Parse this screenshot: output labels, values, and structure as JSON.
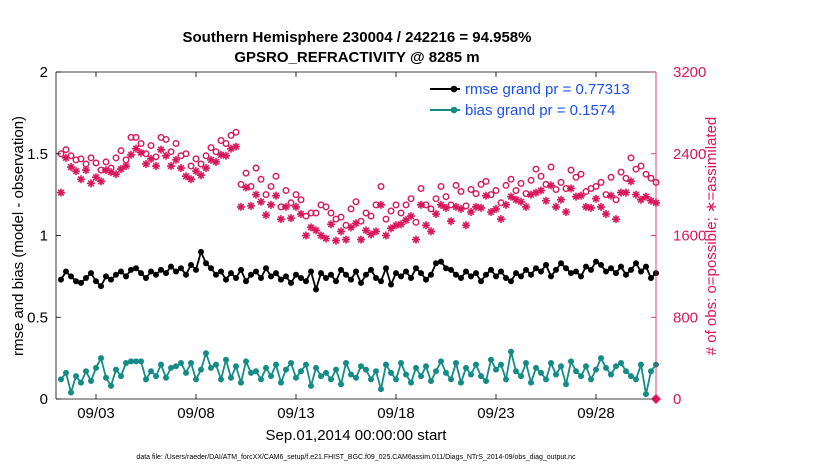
{
  "chart_data": {
    "type": "line",
    "title": "Southern Hemisphere 230004 / 242216 = 94.958%",
    "subtitle": "GPSRO_REFRACTIVITY @ 8285 m",
    "xlabel": "Sep.01,2014 00:00:00 start",
    "ylabel_left": "rmse and bias (model - observation)",
    "ylabel_right": "# of obs: o=possible; ∗=assimilated",
    "footer": "data file: /Users/raeder/DAI/ATM_forcXX/CAM6_setup/f.e21.FHIST_BGC.f09_025.CAM6assim.011/Diags_NTrS_2014-09/obs_diag_output.nc",
    "ylim_left": [
      0,
      2
    ],
    "ylim_right": [
      0,
      3200
    ],
    "xlim": [
      1,
      31
    ],
    "x_ticks": [
      3,
      8,
      13,
      18,
      23,
      28
    ],
    "x_tick_labels": [
      "09/03",
      "09/08",
      "09/13",
      "09/18",
      "09/23",
      "09/28"
    ],
    "y_ticks_left": [
      "0",
      "0.5",
      "1",
      "1.5",
      "2"
    ],
    "y_ticks_right": [
      "0",
      "800",
      "1600",
      "2400",
      "3200"
    ],
    "legend_location": "top-right",
    "colors": {
      "rmse": "#000000",
      "bias": "#138c87",
      "obs": "#d8185a",
      "legend_text": "#1a4ff0"
    },
    "x": [
      1.25,
      1.5,
      1.75,
      2.0,
      2.25,
      2.5,
      2.75,
      3.0,
      3.25,
      3.5,
      3.75,
      4.0,
      4.25,
      4.5,
      4.75,
      5.0,
      5.25,
      5.5,
      5.75,
      6.0,
      6.25,
      6.5,
      6.75,
      7.0,
      7.25,
      7.5,
      7.75,
      8.0,
      8.25,
      8.5,
      8.75,
      9.0,
      9.25,
      9.5,
      9.75,
      10.0,
      10.25,
      10.5,
      10.75,
      11.0,
      11.25,
      11.5,
      11.75,
      12.0,
      12.25,
      12.5,
      12.75,
      13.0,
      13.25,
      13.5,
      13.75,
      14.0,
      14.25,
      14.5,
      14.75,
      15.0,
      15.25,
      15.5,
      15.75,
      16.0,
      16.25,
      16.5,
      16.75,
      17.0,
      17.25,
      17.5,
      17.75,
      18.0,
      18.25,
      18.5,
      18.75,
      19.0,
      19.25,
      19.5,
      19.75,
      20.0,
      20.25,
      20.5,
      20.75,
      21.0,
      21.25,
      21.5,
      21.75,
      22.0,
      22.25,
      22.5,
      22.75,
      23.0,
      23.25,
      23.5,
      23.75,
      24.0,
      24.25,
      24.5,
      24.75,
      25.0,
      25.25,
      25.5,
      25.75,
      26.0,
      26.25,
      26.5,
      26.75,
      27.0,
      27.25,
      27.5,
      27.75,
      28.0,
      28.25,
      28.5,
      28.75,
      29.0,
      29.25,
      29.5,
      29.75,
      30.0,
      30.25,
      30.5,
      30.75,
      31.0
    ],
    "series": [
      {
        "name": "rmse grand pr = 0.77313",
        "marker": "filled-circle",
        "axis": "left",
        "values": [
          0.73,
          0.78,
          0.75,
          0.72,
          0.71,
          0.74,
          0.77,
          0.72,
          0.69,
          0.75,
          0.73,
          0.76,
          0.78,
          0.75,
          0.79,
          0.8,
          0.77,
          0.74,
          0.78,
          0.76,
          0.79,
          0.77,
          0.81,
          0.78,
          0.8,
          0.76,
          0.82,
          0.79,
          0.9,
          0.83,
          0.8,
          0.76,
          0.78,
          0.73,
          0.77,
          0.74,
          0.79,
          0.72,
          0.76,
          0.78,
          0.74,
          0.8,
          0.75,
          0.77,
          0.73,
          0.75,
          0.71,
          0.76,
          0.74,
          0.72,
          0.78,
          0.67,
          0.77,
          0.74,
          0.76,
          0.72,
          0.79,
          0.76,
          0.73,
          0.78,
          0.71,
          0.76,
          0.79,
          0.74,
          0.72,
          0.8,
          0.7,
          0.77,
          0.75,
          0.78,
          0.74,
          0.8,
          0.77,
          0.73,
          0.76,
          0.83,
          0.84,
          0.8,
          0.79,
          0.76,
          0.74,
          0.78,
          0.75,
          0.77,
          0.72,
          0.76,
          0.79,
          0.75,
          0.78,
          0.74,
          0.72,
          0.77,
          0.75,
          0.79,
          0.76,
          0.8,
          0.78,
          0.82,
          0.75,
          0.79,
          0.83,
          0.8,
          0.77,
          0.78,
          0.75,
          0.81,
          0.79,
          0.84,
          0.82,
          0.78,
          0.8,
          0.77,
          0.81,
          0.76,
          0.79,
          0.83,
          0.78,
          0.81,
          0.74,
          0.77
        ]
      },
      {
        "name": "bias grand pr = 0.1574",
        "marker": "filled-circle",
        "axis": "left",
        "values": [
          0.12,
          0.16,
          0.04,
          0.14,
          0.1,
          0.17,
          0.11,
          0.19,
          0.25,
          0.13,
          0.08,
          0.18,
          0.14,
          0.22,
          0.23,
          0.23,
          0.23,
          0.12,
          0.17,
          0.14,
          0.21,
          0.13,
          0.19,
          0.2,
          0.22,
          0.16,
          0.22,
          0.12,
          0.18,
          0.28,
          0.19,
          0.21,
          0.12,
          0.24,
          0.13,
          0.2,
          0.1,
          0.23,
          0.16,
          0.17,
          0.12,
          0.19,
          0.14,
          0.21,
          0.1,
          0.18,
          0.22,
          0.13,
          0.17,
          0.21,
          0.08,
          0.19,
          0.14,
          0.16,
          0.12,
          0.18,
          0.09,
          0.22,
          0.15,
          0.13,
          0.2,
          0.18,
          0.12,
          0.17,
          0.06,
          0.21,
          0.16,
          0.12,
          0.22,
          0.15,
          0.1,
          0.19,
          0.14,
          0.2,
          0.11,
          0.17,
          0.23,
          0.16,
          0.12,
          0.22,
          0.1,
          0.19,
          0.15,
          0.21,
          0.14,
          0.11,
          0.24,
          0.18,
          0.21,
          0.12,
          0.29,
          0.17,
          0.14,
          0.22,
          0.1,
          0.19,
          0.16,
          0.12,
          0.22,
          0.15,
          0.2,
          0.09,
          0.23,
          0.17,
          0.14,
          0.2,
          0.12,
          0.18,
          0.25,
          0.19,
          0.15,
          0.2,
          0.22,
          0.17,
          0.14,
          0.12,
          0.21,
          0.03,
          0.17,
          0.21
        ]
      },
      {
        "name": "# of obs possible",
        "marker": "open-circle",
        "axis": "right",
        "values": [
          2400,
          2440,
          2380,
          2340,
          2350,
          2300,
          2360,
          2310,
          2240,
          2320,
          2260,
          2360,
          2430,
          2340,
          2560,
          2560,
          2500,
          2400,
          2480,
          2370,
          2560,
          2540,
          2420,
          2500,
          2380,
          2400,
          2280,
          2350,
          2300,
          2380,
          2460,
          2420,
          2530,
          2500,
          2580,
          2610,
          2100,
          2210,
          2080,
          2260,
          2150,
          2000,
          2080,
          2180,
          1880,
          2040,
          1920,
          2000,
          1950,
          1790,
          1820,
          1820,
          1900,
          1880,
          1820,
          1760,
          1780,
          1700,
          1860,
          1930,
          1740,
          1820,
          1790,
          1900,
          2080,
          1760,
          1840,
          1900,
          1820,
          1900,
          1960,
          1730,
          2060,
          1900,
          1860,
          1960,
          2080,
          1980,
          1900,
          2090,
          2030,
          1890,
          2050,
          2010,
          2100,
          2130,
          2000,
          2040,
          1920,
          2090,
          2150,
          2040,
          2110,
          2010,
          2140,
          2250,
          2180,
          2100,
          2270,
          2050,
          2120,
          2060,
          2240,
          2170,
          2200,
          2030,
          2060,
          2080,
          2120,
          2000,
          2170,
          1950,
          2220,
          2160,
          2360,
          2250,
          2280,
          2200,
          2160,
          2120
        ]
      },
      {
        "name": "# of obs assimilated",
        "marker": "asterisk",
        "axis": "right",
        "values": [
          2020,
          2360,
          2270,
          2230,
          2150,
          2240,
          2110,
          2170,
          2130,
          2240,
          2220,
          2200,
          2250,
          2280,
          2390,
          2450,
          2410,
          2300,
          2350,
          2280,
          2440,
          2380,
          2280,
          2340,
          2260,
          2180,
          2150,
          2230,
          2190,
          2260,
          2340,
          2320,
          2390,
          2380,
          2450,
          2470,
          1880,
          2070,
          1890,
          2000,
          1930,
          1800,
          1900,
          1990,
          1760,
          1880,
          1770,
          1880,
          1810,
          1600,
          1680,
          1650,
          1600,
          1570,
          1710,
          1550,
          1640,
          1560,
          1680,
          1720,
          1560,
          1650,
          1610,
          1640,
          1900,
          1600,
          1670,
          1700,
          1710,
          1750,
          1790,
          1560,
          1900,
          1700,
          1640,
          1810,
          1900,
          1870,
          1740,
          1880,
          1860,
          1700,
          1830,
          1880,
          1870,
          1990,
          1830,
          1860,
          1760,
          1900,
          1980,
          1950,
          1930,
          1880,
          2000,
          2020,
          2040,
          1940,
          2090,
          1880,
          1950,
          1830,
          2060,
          1980,
          1990,
          1880,
          1870,
          1960,
          1880,
          1810,
          1990,
          1760,
          2020,
          2020,
          2130,
          2000,
          1950,
          1980,
          1940,
          1920
        ]
      }
    ]
  }
}
